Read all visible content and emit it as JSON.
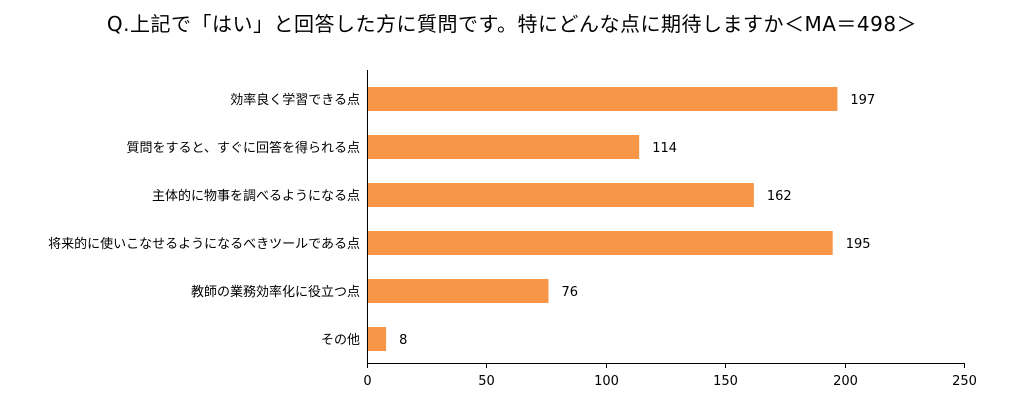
{
  "chart_data": {
    "type": "bar",
    "orientation": "horizontal",
    "title": "Q.上記で「はい」と回答した方に質問です。特にどんな点に期待しますか＜MA＝498＞",
    "categories": [
      "効率良く学習できる点",
      "質問をすると、すぐに回答を得られる点",
      "主体的に物事を調べるようになる点",
      "将来的に使いこなせるようになるべきツールである点",
      "教師の業務効率化に役立つ点",
      "その他"
    ],
    "values": [
      197,
      114,
      162,
      195,
      76,
      8
    ],
    "value_labels": [
      "197",
      "114",
      "162",
      "195",
      "76",
      "8"
    ],
    "xlim": [
      0,
      250
    ],
    "x_ticks": [
      0,
      50,
      100,
      150,
      200,
      250
    ],
    "x_tick_labels": [
      "0",
      "50",
      "100",
      "150",
      "200",
      "250"
    ],
    "xlabel": "",
    "ylabel": "",
    "grid": false,
    "legend": "none",
    "bar_color": "#F79646"
  }
}
